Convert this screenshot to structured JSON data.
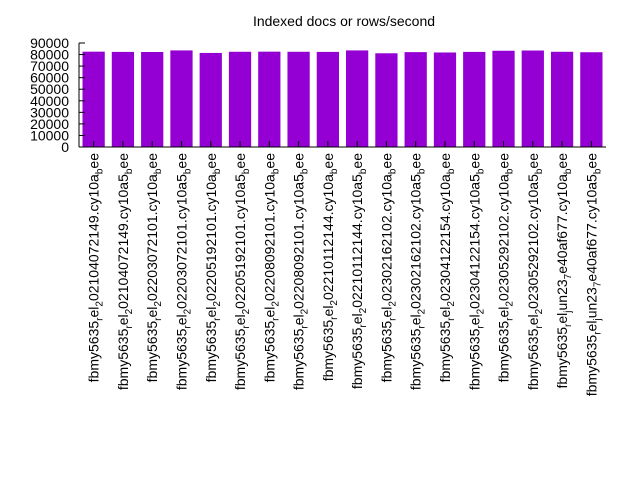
{
  "chart_data": {
    "type": "bar",
    "title": "Indexed docs or rows/second",
    "xlabel": "",
    "ylabel": "",
    "ylim": [
      0,
      90000
    ],
    "yticks": [
      0,
      10000,
      20000,
      30000,
      40000,
      50000,
      60000,
      70000,
      80000,
      90000
    ],
    "bar_color": "#9400d3",
    "grid": false,
    "categories": [
      "fbmy5635_rel_202104072149.cy10a_bee",
      "fbmy5635_rel_202104072149.cy10a5_bee",
      "fbmy5635_rel_202203072101.cy10a_bee",
      "fbmy5635_rel_202203072101.cy10a5_bee",
      "fbmy5635_rel_202205192101.cy10a_bee",
      "fbmy5635_rel_202205192101.cy10a5_bee",
      "fbmy5635_rel_202208092101.cy10a_bee",
      "fbmy5635_rel_202208092101.cy10a5_bee",
      "fbmy5635_rel_202210112144.cy10a_bee",
      "fbmy5635_rel_202210112144.cy10a5_bee",
      "fbmy5635_rel_202302162102.cy10a_bee",
      "fbmy5635_rel_202302162102.cy10a5_bee",
      "fbmy5635_rel_202304122154.cy10a_bee",
      "fbmy5635_rel_202304122154.cy10a5_bee",
      "fbmy5635_rel_202305292102.cy10a_bee",
      "fbmy5635_rel_202305292102.cy10a5_bee",
      "fbmy5635_rel_jun23_7e40af677.cy10a_bee",
      "fbmy5635_rel_jun23_7e40af677.cy10a5_bee"
    ],
    "values": [
      82500,
      82300,
      82200,
      83600,
      81400,
      82400,
      82500,
      82400,
      82300,
      83600,
      81100,
      82100,
      81800,
      82300,
      83300,
      83500,
      82400,
      82000
    ]
  }
}
